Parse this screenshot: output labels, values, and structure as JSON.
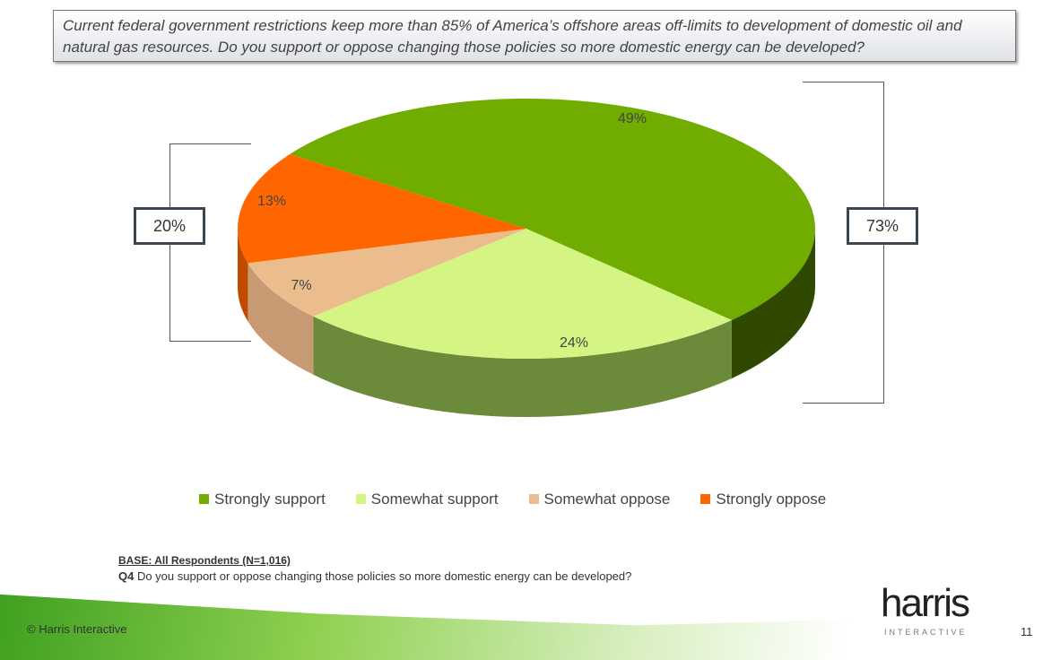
{
  "question_box": "Current federal government restrictions keep more than 85% of America’s offshore areas off-limits to development of domestic oil and natural gas resources. Do you support or oppose changing those policies so more domestic energy can be developed?",
  "chart_data": {
    "type": "pie",
    "categories": [
      "Strongly support",
      "Somewhat support",
      "Somewhat oppose",
      "Strongly oppose"
    ],
    "values": [
      49,
      24,
      7,
      13
    ],
    "labels": [
      "49%",
      "24%",
      "7%",
      "13%"
    ],
    "colors": [
      "#70ad00",
      "#d4f584",
      "#ebbd8c",
      "#ff6600"
    ],
    "side_colors": [
      "#2f4a00",
      "#6b8a3a",
      "#c89a74",
      "#c04a00"
    ],
    "legend_position": "bottom",
    "brackets": {
      "support_total": "73%",
      "oppose_total": "20%"
    }
  },
  "footer": {
    "base": "BASE: All Respondents (N=1,016)",
    "q_label": "Q4",
    "q_text": " Do you support or oppose changing those policies so more domestic energy can be developed?",
    "copyright": "© Harris Interactive",
    "logo": "harris",
    "logo_sub": "INTERACTIVE",
    "page": "11"
  }
}
